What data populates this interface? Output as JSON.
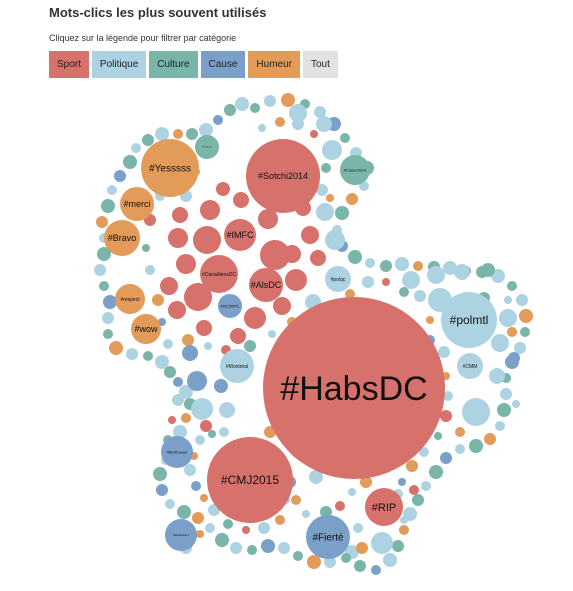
{
  "page": {
    "title": "Mots-clics les plus souvent utilisés",
    "subtitle": "Cliquez sur la légende pour filtrer par catégorie"
  },
  "legend": [
    {
      "label": "Sport",
      "color": "#d6716b"
    },
    {
      "label": "Politique",
      "color": "#add3e3"
    },
    {
      "label": "Culture",
      "color": "#79b5a8"
    },
    {
      "label": "Cause",
      "color": "#7aa0c9"
    },
    {
      "label": "Humeur",
      "color": "#e39b5a"
    },
    {
      "label": "Tout",
      "color": "#e2e2e2"
    }
  ],
  "colors": {
    "sport": "#d6716b",
    "politique": "#add3e3",
    "culture": "#79b5a8",
    "cause": "#7aa0c9",
    "humeur": "#e39b5a"
  },
  "bubbles": [
    {
      "label": "#HabsDC",
      "category": "sport"
    },
    {
      "label": "#Sotchi2014",
      "category": "sport"
    },
    {
      "label": "#Yesssss",
      "category": "humeur"
    },
    {
      "label": "#polmtl",
      "category": "politique"
    },
    {
      "label": "#CMJ2015",
      "category": "sport"
    },
    {
      "label": "#RIP",
      "category": "sport"
    },
    {
      "label": "#Fierté",
      "category": "cause"
    },
    {
      "label": "#merci",
      "category": "humeur"
    },
    {
      "label": "#Bravo",
      "category": "humeur"
    },
    {
      "label": "#wow",
      "category": "humeur"
    },
    {
      "label": "#respect",
      "category": "humeur"
    },
    {
      "label": "#IMFC",
      "category": "sport"
    },
    {
      "label": "#AlsDC",
      "category": "sport"
    },
    {
      "label": "#CanadiensDC",
      "category": "sport"
    },
    {
      "label": "#Montréal",
      "category": "politique"
    },
    {
      "label": "#CMM",
      "category": "politique"
    },
    {
      "label": "#polqc",
      "category": "politique"
    },
    {
      "label": "#TheGame",
      "category": "culture"
    },
    {
      "label": "#Cause2014",
      "category": "culture"
    },
    {
      "label": "#BellCause",
      "category": "cause"
    },
    {
      "label": "#AuSuivant",
      "category": "cause"
    },
    {
      "label": "#2015MTL",
      "category": "cause"
    }
  ]
}
